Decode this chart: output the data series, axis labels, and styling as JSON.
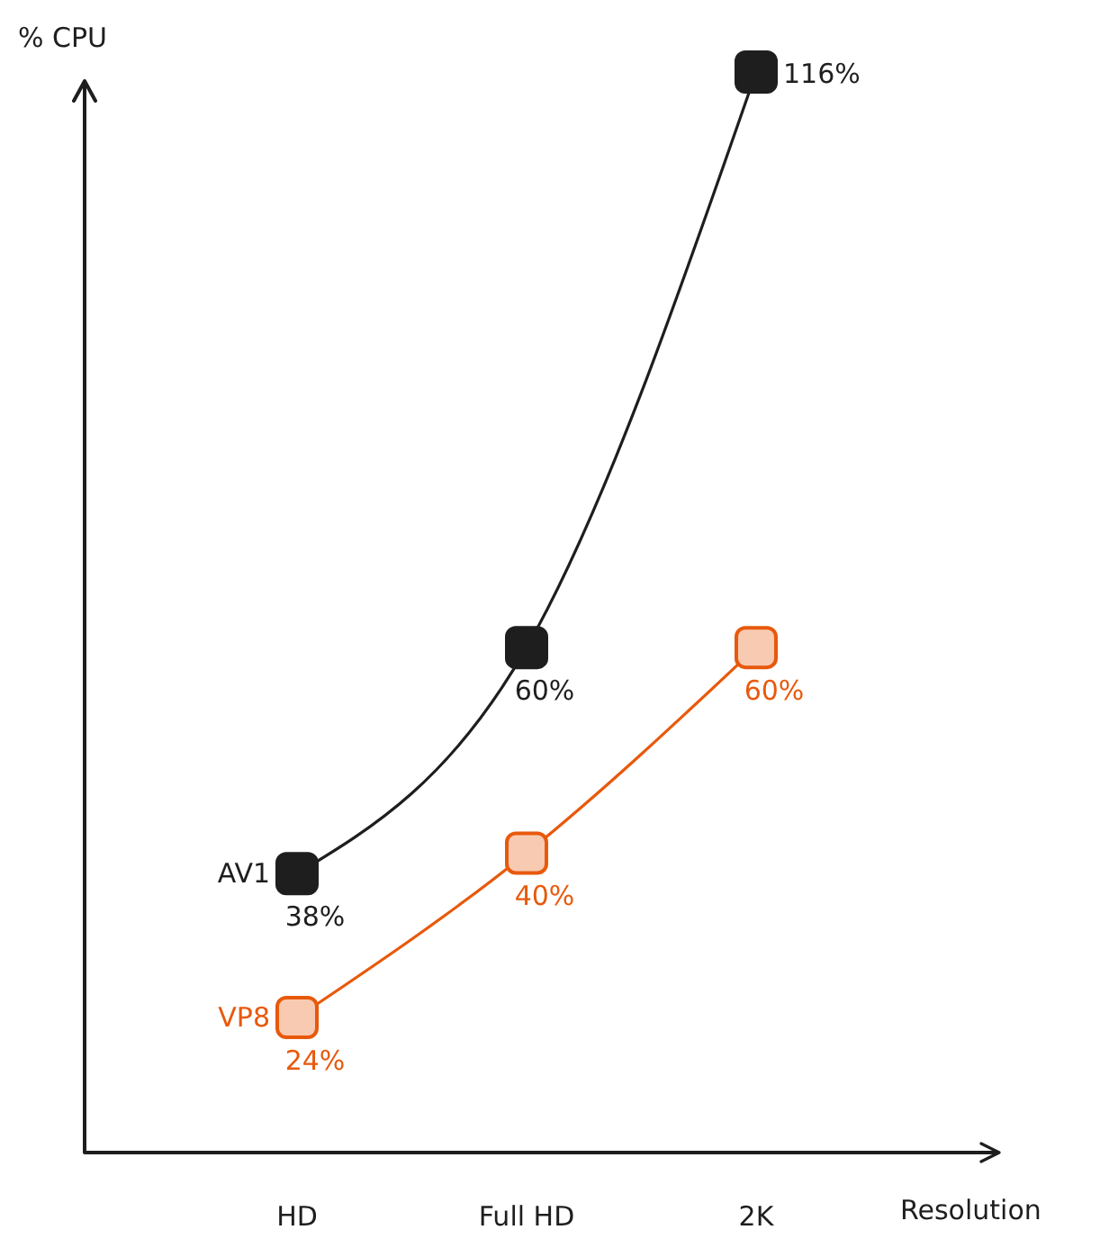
{
  "chart_data": {
    "type": "line",
    "xlabel": "Resolution",
    "ylabel": "% CPU",
    "categories": [
      "HD",
      "Full HD",
      "2K"
    ],
    "series": [
      {
        "name": "AV1",
        "color": "#1e1e1e",
        "values": [
          38,
          60,
          116
        ],
        "value_labels": [
          "38%",
          "60%",
          "116%"
        ]
      },
      {
        "name": "VP8",
        "color": "#e8590c",
        "values": [
          24,
          40,
          60
        ],
        "value_labels": [
          "24%",
          "40%",
          "60%"
        ]
      }
    ],
    "tick_labels": "x",
    "marker": "square",
    "line_style": "solid"
  }
}
